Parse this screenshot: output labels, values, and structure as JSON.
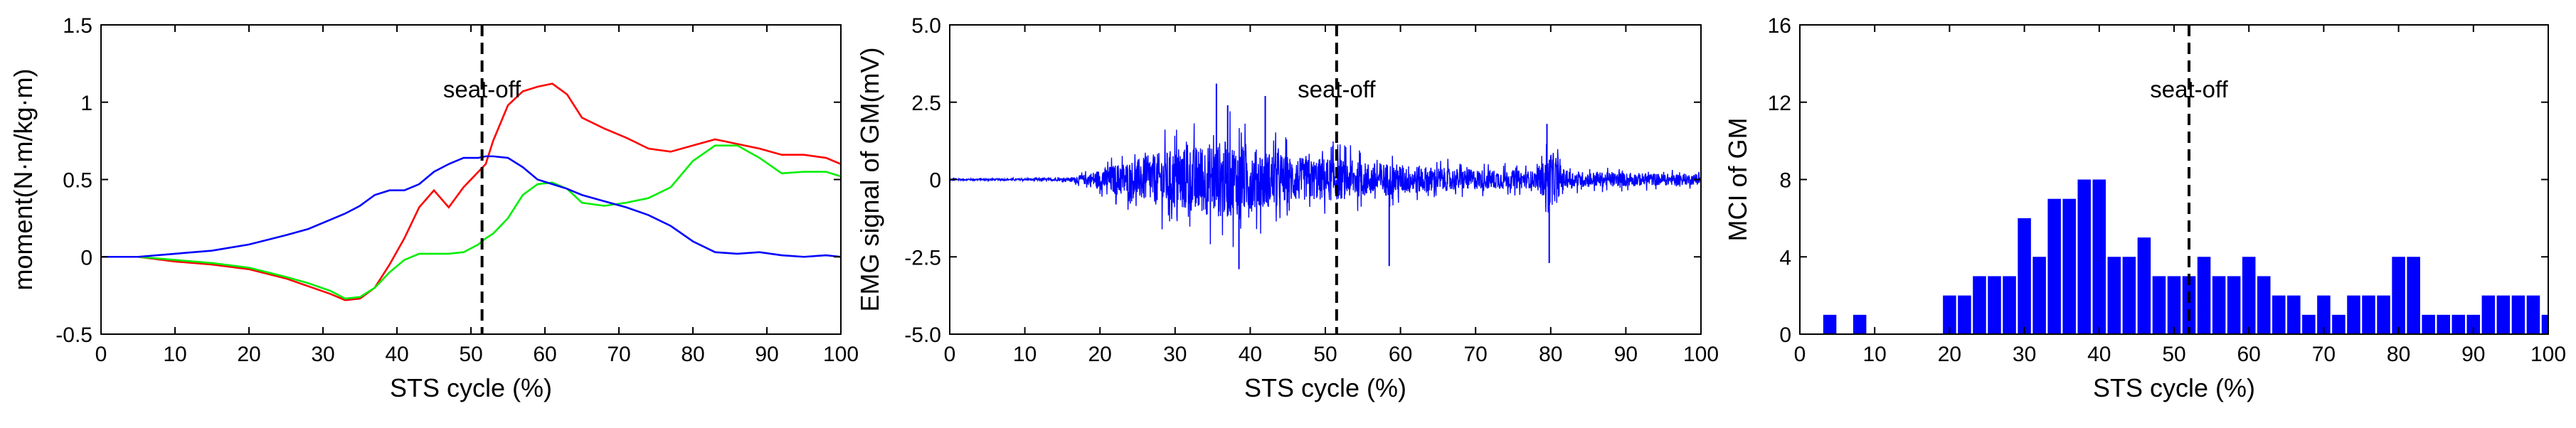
{
  "chart_data": [
    {
      "type": "line",
      "xlabel": "STS cycle (%)",
      "ylabel": "moment(N·m/kg·m)",
      "xlim": [
        0,
        100
      ],
      "ylim": [
        -0.5,
        1.5
      ],
      "x_ticks": [
        0,
        10,
        20,
        30,
        40,
        50,
        60,
        70,
        80,
        90,
        100
      ],
      "y_ticks": [
        -0.5,
        0,
        0.5,
        1,
        1.5
      ],
      "y_tick_labels": [
        "-0.5",
        "0",
        "0.5",
        "1",
        "1.5"
      ],
      "annotation": {
        "text": "seat-off",
        "x": 51.5
      },
      "x": [
        0,
        5,
        10,
        15,
        20,
        25,
        28,
        31,
        33,
        35,
        37,
        39,
        41,
        43,
        45,
        47,
        49,
        51,
        52,
        53,
        55,
        57,
        59,
        61,
        63,
        65,
        68,
        71,
        74,
        77,
        80,
        83,
        86,
        89,
        92,
        95,
        98,
        100
      ],
      "series": [
        {
          "name": "red",
          "color": "#ff0000",
          "values": [
            0,
            0,
            -0.03,
            -0.05,
            -0.08,
            -0.14,
            -0.19,
            -0.24,
            -0.28,
            -0.27,
            -0.2,
            -0.05,
            0.12,
            0.32,
            0.43,
            0.32,
            0.45,
            0.55,
            0.6,
            0.75,
            0.98,
            1.07,
            1.1,
            1.12,
            1.05,
            0.9,
            0.83,
            0.77,
            0.7,
            0.68,
            0.72,
            0.76,
            0.73,
            0.7,
            0.66,
            0.66,
            0.64,
            0.6
          ]
        },
        {
          "name": "green",
          "color": "#00ee00",
          "values": [
            0,
            0,
            -0.02,
            -0.04,
            -0.07,
            -0.13,
            -0.17,
            -0.22,
            -0.27,
            -0.26,
            -0.2,
            -0.1,
            -0.02,
            0.02,
            0.02,
            0.02,
            0.03,
            0.08,
            0.12,
            0.15,
            0.25,
            0.4,
            0.47,
            0.48,
            0.44,
            0.35,
            0.33,
            0.35,
            0.38,
            0.45,
            0.62,
            0.72,
            0.72,
            0.64,
            0.54,
            0.55,
            0.55,
            0.52
          ]
        },
        {
          "name": "blue",
          "color": "#0000ff",
          "values": [
            0,
            0,
            0.02,
            0.04,
            0.08,
            0.14,
            0.18,
            0.24,
            0.28,
            0.33,
            0.4,
            0.43,
            0.43,
            0.47,
            0.55,
            0.6,
            0.64,
            0.64,
            0.65,
            0.65,
            0.64,
            0.58,
            0.5,
            0.47,
            0.44,
            0.4,
            0.36,
            0.32,
            0.27,
            0.2,
            0.1,
            0.03,
            0.02,
            0.03,
            0.01,
            0,
            0.01,
            0
          ]
        }
      ]
    },
    {
      "type": "line",
      "xlabel": "STS cycle (%)",
      "ylabel": "EMG signal of GM(mV)",
      "xlim": [
        0,
        100
      ],
      "ylim": [
        -5.0,
        5.0
      ],
      "x_ticks": [
        0,
        10,
        20,
        30,
        40,
        50,
        60,
        70,
        80,
        90,
        100
      ],
      "y_ticks": [
        -5,
        -2.5,
        0,
        2.5,
        5
      ],
      "y_tick_labels": [
        "-5.0",
        "-2.5",
        "0",
        "2.5",
        "5.0"
      ],
      "annotation": {
        "text": "seat-off",
        "x": 51.5
      },
      "series": [
        {
          "name": "EMG",
          "color": "#0000ff",
          "envelope_x": [
            0,
            10,
            16,
            18,
            20,
            22,
            25,
            28,
            30,
            33,
            35,
            37,
            39,
            41,
            43,
            45,
            48,
            50,
            52,
            55,
            58,
            60,
            63,
            65,
            70,
            75,
            78,
            80,
            82,
            85,
            90,
            95,
            100
          ],
          "envelope_amplitude": [
            0.05,
            0.05,
            0.1,
            0.3,
            0.6,
            0.9,
            1.2,
            1.6,
            1.8,
            2.0,
            2.2,
            2.3,
            2.0,
            1.8,
            1.6,
            1.4,
            1.2,
            1.3,
            1.2,
            1.0,
            1.0,
            0.9,
            0.8,
            0.7,
            0.6,
            0.55,
            0.5,
            1.6,
            0.5,
            0.45,
            0.4,
            0.35,
            0.3
          ],
          "spikes": [
            {
              "x": 35.5,
              "value": 3.1
            },
            {
              "x": 37,
              "value": 2.4
            },
            {
              "x": 38.5,
              "value": -2.9
            },
            {
              "x": 42,
              "value": 2.7
            },
            {
              "x": 58.5,
              "value": -2.8
            },
            {
              "x": 79.5,
              "value": 1.8
            },
            {
              "x": 79.8,
              "value": -2.7
            }
          ]
        }
      ]
    },
    {
      "type": "bar",
      "xlabel": "STS cycle (%)",
      "ylabel": "MCI of GM",
      "xlim": [
        0,
        100
      ],
      "ylim": [
        0,
        16
      ],
      "x_ticks": [
        0,
        10,
        20,
        30,
        40,
        50,
        60,
        70,
        80,
        90,
        100
      ],
      "y_ticks": [
        0,
        4,
        8,
        12,
        16
      ],
      "y_tick_labels": [
        "0",
        "4",
        "8",
        "12",
        "16"
      ],
      "annotation": {
        "text": "seat-off",
        "x": 52
      },
      "color": "#0000ff",
      "x": [
        4,
        8,
        12,
        16,
        20,
        22,
        24,
        26,
        28,
        30,
        32,
        34,
        36,
        38,
        40,
        42,
        44,
        46,
        48,
        50,
        52,
        54,
        56,
        58,
        60,
        62,
        64,
        66,
        68,
        70,
        72,
        74,
        76,
        78,
        80,
        82,
        84,
        86,
        88,
        90,
        92,
        94,
        96,
        98,
        100
      ],
      "values": [
        1,
        1,
        0,
        0,
        2,
        2,
        3,
        3,
        3,
        6,
        4,
        7,
        7,
        8,
        8,
        4,
        4,
        5,
        3,
        3,
        3,
        4,
        3,
        3,
        4,
        3,
        2,
        2,
        1,
        2,
        1,
        2,
        2,
        2,
        4,
        4,
        1,
        1,
        1,
        1,
        2,
        2,
        2,
        2,
        1
      ]
    }
  ]
}
